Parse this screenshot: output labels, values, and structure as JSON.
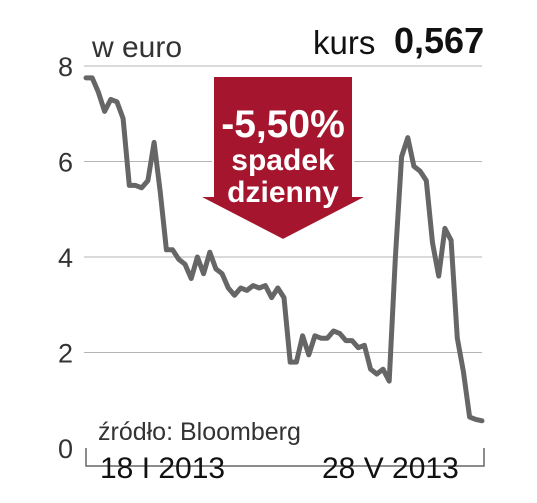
{
  "header": {
    "unit_label": "w euro",
    "price_label": "kurs",
    "price_value": "0,567"
  },
  "callout": {
    "change": "-5,50%",
    "line1": "spadek",
    "line2": "dzienny"
  },
  "source": "źródło: Bloomberg",
  "chart_data": {
    "type": "line",
    "title": "",
    "ylabel": "w euro",
    "ylim": [
      0,
      8
    ],
    "yticks": [
      0,
      2,
      4,
      6,
      8
    ],
    "x_tick_labels": [
      "18 I 2013",
      "28 V 2013"
    ],
    "grid": "horizontal",
    "color": "#666666",
    "series": [
      {
        "values": [
          7.75,
          7.75,
          7.45,
          7.05,
          7.3,
          7.25,
          6.9,
          5.5,
          5.5,
          5.45,
          5.6,
          6.4,
          5.35,
          4.15,
          4.15,
          3.95,
          3.85,
          3.55,
          4.0,
          3.65,
          4.1,
          3.75,
          3.65,
          3.35,
          3.2,
          3.35,
          3.3,
          3.4,
          3.35,
          3.4,
          3.15,
          3.35,
          3.15,
          1.8,
          1.8,
          2.35,
          1.95,
          2.35,
          2.3,
          2.3,
          2.45,
          2.4,
          2.25,
          2.25,
          2.1,
          2.15,
          1.65,
          1.55,
          1.65,
          1.4,
          4.0,
          6.1,
          6.5,
          5.9,
          5.8,
          5.6,
          4.3,
          3.6,
          4.6,
          4.35,
          2.3,
          1.6,
          0.65,
          0.6,
          0.57
        ]
      }
    ]
  }
}
